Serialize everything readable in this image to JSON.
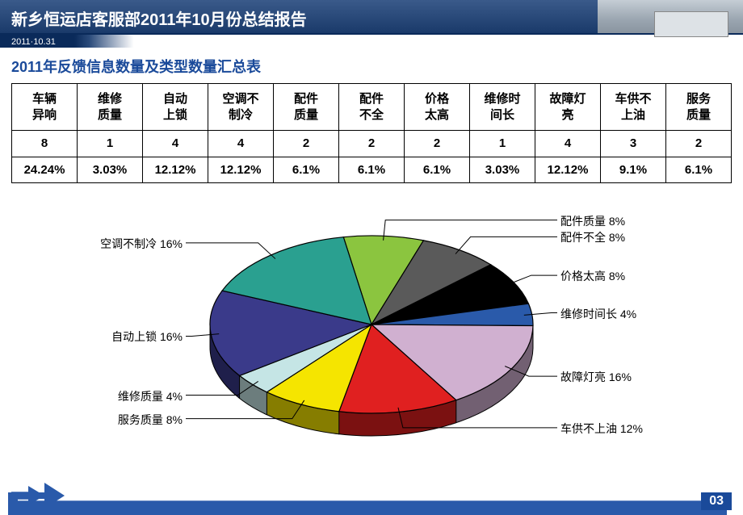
{
  "header": {
    "title": "新乡恒运店客服部2011年10月份总结报告",
    "date": "2011·10.31"
  },
  "section_title": "2011年反馈信息数量及类型数量汇总表",
  "table": {
    "columns": [
      "车辆\n异响",
      "维修\n质量",
      "自动\n上锁",
      "空调不\n制冷",
      "配件\n质量",
      "配件\n不全",
      "价格\n太高",
      "维修时\n间长",
      "故障灯\n亮",
      "车供不\n上油",
      "服务\n质量"
    ],
    "counts": [
      "8",
      "1",
      "4",
      "4",
      "2",
      "2",
      "2",
      "1",
      "4",
      "3",
      "2"
    ],
    "percents": [
      "24.24%",
      "3.03%",
      "12.12%",
      "12.12%",
      "6.1%",
      "6.1%",
      "6.1%",
      "3.03%",
      "12.12%",
      "9.1%",
      "6.1%"
    ]
  },
  "chart": {
    "type": "pie-3d",
    "slices": [
      {
        "label": "配件质量",
        "pct": "8%",
        "color": "#8bc53f"
      },
      {
        "label": "配件不全",
        "pct": "8%",
        "color": "#5a5a5a"
      },
      {
        "label": "价格太高",
        "pct": "8%",
        "color": "#000000"
      },
      {
        "label": "维修时间长",
        "pct": "4%",
        "color": "#2a5aaa"
      },
      {
        "label": "故障灯亮",
        "pct": "16%",
        "color": "#d0b0d0"
      },
      {
        "label": "车供不上油",
        "pct": "12%",
        "color": "#e02020"
      },
      {
        "label": "服务质量",
        "pct": "8%",
        "color": "#f5e500"
      },
      {
        "label": "维修质量",
        "pct": "4%",
        "color": "#c5e5e5"
      },
      {
        "label": "自动上锁",
        "pct": "16%",
        "color": "#3a3a8a"
      },
      {
        "label": "空调不制冷",
        "pct": "16%",
        "color": "#2aa090"
      }
    ],
    "stroke": "#000000",
    "background": "#ffffff"
  },
  "page_number": "03"
}
